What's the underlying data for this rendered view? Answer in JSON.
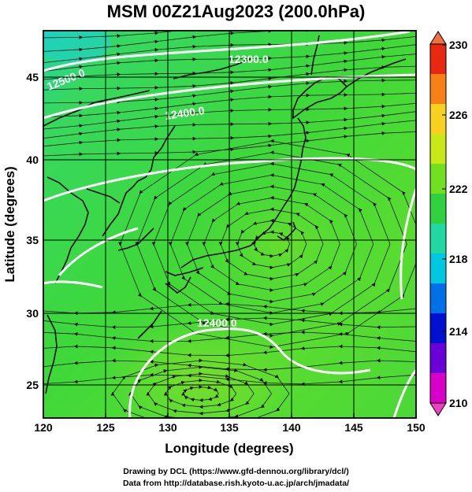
{
  "title": "MSM 00Z21Aug2023 (200.0hPa)",
  "xaxis": {
    "label": "Longitude (degrees)",
    "ticks": [
      "120",
      "125",
      "130",
      "135",
      "140",
      "145",
      "150"
    ]
  },
  "yaxis": {
    "label": "Latitude  (degrees)",
    "ticks": [
      "45",
      "40",
      "35",
      "30",
      "25"
    ]
  },
  "colorbar": {
    "ticks": [
      "230",
      "226",
      "222",
      "218",
      "214",
      "210"
    ],
    "colors": [
      "#d800c8",
      "#6a00d8",
      "#0010d0",
      "#0070e8",
      "#00c8e0",
      "#20d8a0",
      "#30d040",
      "#70e020",
      "#c8e818",
      "#f8d020",
      "#f88018",
      "#e82810"
    ]
  },
  "contours": [
    "12300.0",
    "12400.0",
    "12500.0"
  ],
  "credits": {
    "line1": "Drawing by DCL (https://www.gfd-dennou.org/library/dcl/)",
    "line2": "Data from http://database.rish.kyoto-u.ac.jp/arch/jmadata/"
  }
}
